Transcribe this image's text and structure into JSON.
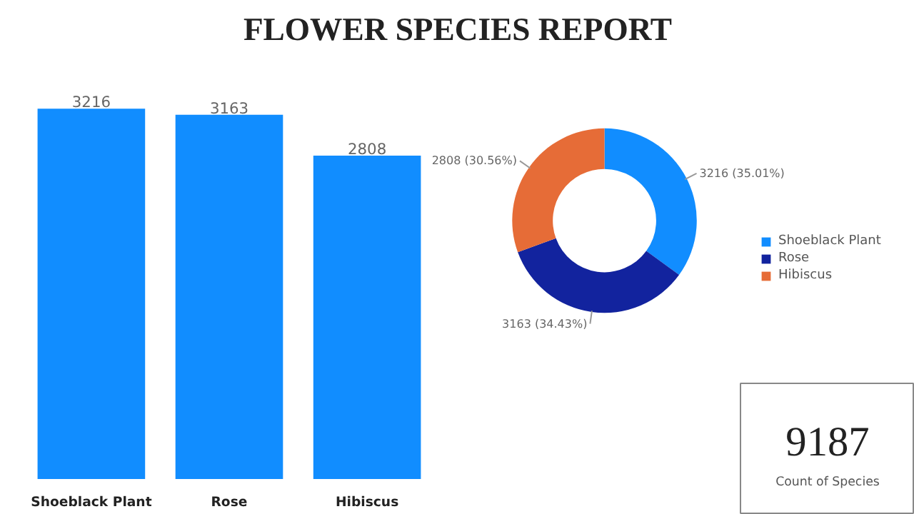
{
  "chart_data": [
    {
      "type": "bar",
      "title": "FLOWER SPECIES REPORT",
      "categories": [
        "Shoeblack Plant",
        "Rose",
        "Hibiscus"
      ],
      "values": [
        3216,
        3163,
        2808
      ],
      "color": "#118dff",
      "data_labels": true
    },
    {
      "type": "donut",
      "categories": [
        "Shoeblack Plant",
        "Rose",
        "Hibiscus"
      ],
      "values": [
        3216,
        3163,
        2808
      ],
      "colors": [
        "#118dff",
        "#12239e",
        "#e66c37"
      ],
      "value_labels": [
        "3216 (35.01%)",
        "3163 (34.43%)",
        "2808 (30.56%)"
      ],
      "legend": "right"
    },
    {
      "type": "other",
      "annotations": [
        "9187",
        "Count of Species"
      ]
    }
  ]
}
